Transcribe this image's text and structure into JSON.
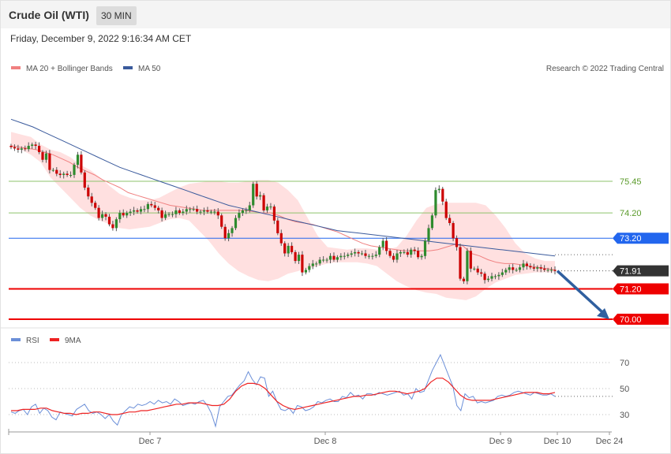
{
  "header": {
    "title": "Crude Oil (WTI)",
    "timeframe": "30 MIN",
    "timestamp": "Friday, December 9, 2022 9:16:34 AM CET"
  },
  "legend": {
    "ma20": "MA 20 + Bollinger Bands",
    "ma50": "MA 50",
    "credit": "Research © 2022 Trading Central",
    "rsi": "RSI",
    "ma9": "9MA"
  },
  "colors": {
    "ma20": "#f08080",
    "ma50": "#3a5a9c",
    "band": "#ffd6d6",
    "up": "#2e8b2e",
    "down": "#cc0000",
    "resistance": "#2266ee",
    "support": "#ee0000",
    "pivot_green": "#8dc36b",
    "current": "#333333",
    "rsi": "#6b8fd8",
    "rsi_ma": "#ee2222"
  },
  "chart_data": [
    {
      "type": "candlestick",
      "title": "Crude Oil (WTI)",
      "timeframe": "30 MIN",
      "x_ticks": [
        "Dec 7",
        "Dec 8",
        "Dec 9",
        "Dec 10",
        "Dec 24"
      ],
      "ylim": [
        69.75,
        76.6
      ],
      "levels": [
        {
          "label": "75.45",
          "value": 75.45,
          "kind": "green"
        },
        {
          "label": "74.20",
          "value": 74.2,
          "kind": "green"
        },
        {
          "label": "73.20",
          "value": 73.2,
          "kind": "resistance"
        },
        {
          "label": "71.91",
          "value": 71.91,
          "kind": "current"
        },
        {
          "label": "71.20",
          "value": 71.2,
          "kind": "support"
        },
        {
          "label": "70.00",
          "value": 70.0,
          "kind": "support"
        }
      ],
      "close": [
        76.8,
        76.75,
        76.7,
        76.75,
        76.72,
        76.85,
        76.9,
        76.85,
        76.6,
        76.3,
        76.55,
        75.9,
        75.9,
        75.75,
        75.7,
        75.75,
        75.7,
        75.7,
        76.1,
        76.5,
        75.8,
        75.2,
        74.85,
        74.6,
        74.4,
        74.0,
        74.15,
        74.05,
        73.75,
        73.6,
        73.95,
        74.2,
        74.1,
        74.2,
        74.25,
        74.3,
        74.25,
        74.35,
        74.35,
        74.55,
        74.5,
        74.4,
        74.3,
        74.0,
        74.15,
        74.15,
        74.15,
        74.3,
        74.2,
        74.25,
        74.35,
        74.35,
        74.35,
        74.25,
        74.25,
        74.3,
        74.25,
        74.25,
        74.25,
        74.1,
        73.65,
        73.2,
        73.4,
        73.6,
        74.0,
        74.2,
        74.3,
        74.3,
        74.5,
        75.35,
        74.85,
        74.9,
        74.3,
        74.45,
        74.45,
        73.9,
        73.4,
        73.0,
        72.6,
        72.9,
        72.65,
        72.3,
        72.55,
        71.85,
        71.95,
        72.1,
        72.2,
        72.2,
        72.35,
        72.35,
        72.35,
        72.5,
        72.35,
        72.45,
        72.5,
        72.5,
        72.55,
        72.6,
        72.65,
        72.6,
        72.6,
        72.5,
        72.5,
        72.5,
        72.55,
        72.85,
        73.1,
        72.7,
        72.5,
        72.35,
        72.6,
        72.65,
        72.65,
        72.55,
        72.75,
        72.7,
        72.45,
        72.5,
        73.1,
        73.6,
        74.1,
        75.1,
        75.15,
        74.65,
        74.0,
        73.8,
        73.2,
        72.85,
        71.6,
        71.5,
        72.7,
        72.0,
        72.0,
        71.85,
        71.8,
        71.55,
        71.6,
        71.7,
        71.7,
        71.75,
        71.85,
        71.95,
        72.05,
        71.95,
        71.95,
        72.05,
        72.2,
        72.1,
        72.05,
        72.0,
        72.05,
        72.0,
        71.95,
        71.95,
        71.95,
        71.91
      ],
      "ma20": [
        76.85,
        76.8,
        76.75,
        76.7,
        76.6,
        76.5,
        76.35,
        76.2,
        76.0,
        75.85,
        75.7,
        75.5,
        75.35,
        75.2,
        75.0,
        74.9,
        74.8,
        74.7,
        74.6,
        74.5,
        74.45,
        74.4,
        74.35,
        74.3,
        74.3,
        74.3,
        74.3,
        74.3,
        74.3,
        74.25,
        74.2,
        74.2,
        74.1,
        73.95,
        73.85,
        73.8,
        73.75,
        73.65,
        73.55,
        73.45,
        73.3,
        73.15,
        73.0,
        72.9,
        72.85,
        72.8,
        72.75,
        72.7,
        72.7,
        72.7,
        72.7,
        72.75,
        72.85,
        72.95,
        72.9,
        72.6,
        72.5,
        72.35,
        72.25,
        72.2,
        72.2,
        72.15,
        72.1,
        72.05,
        72.0,
        71.95
      ],
      "ma50": [
        77.9,
        77.75,
        77.6,
        77.4,
        77.2,
        77.0,
        76.8,
        76.6,
        76.4,
        76.2,
        76.0,
        75.85,
        75.7,
        75.55,
        75.4,
        75.25,
        75.1,
        74.95,
        74.8,
        74.65,
        74.5,
        74.4,
        74.3,
        74.2,
        74.1,
        74.0,
        73.9,
        73.8,
        73.7,
        73.6,
        73.5,
        73.45,
        73.4,
        73.35,
        73.3,
        73.25,
        73.2,
        73.15,
        73.1,
        73.05,
        73.0,
        72.95,
        72.9,
        72.85,
        72.8,
        72.75,
        72.7,
        72.65,
        72.6,
        72.55,
        72.5
      ],
      "band_upper": [
        77.4,
        77.3,
        77.2,
        76.9,
        76.7,
        76.6,
        76.4,
        76.1,
        75.9,
        75.6,
        75.25,
        74.95,
        74.8,
        74.7,
        74.7,
        74.8,
        75.0,
        75.2,
        75.35,
        75.4,
        75.45,
        75.45,
        75.4,
        75.4,
        75.45,
        75.5,
        75.5,
        75.4,
        75.1,
        74.7,
        74.0,
        73.3,
        72.85,
        72.8,
        72.75,
        72.8,
        72.8,
        72.75,
        72.75,
        72.85,
        73.3,
        73.9,
        74.4,
        74.55,
        74.6,
        74.6,
        74.6,
        74.6,
        74.5,
        74.1,
        73.6,
        73.0,
        72.6,
        72.4,
        72.3,
        72.3
      ],
      "band_lower": [
        76.8,
        76.7,
        76.5,
        76.2,
        75.6,
        75.2,
        74.8,
        74.4,
        74.1,
        73.9,
        73.75,
        73.6,
        73.55,
        73.6,
        73.65,
        73.8,
        73.95,
        74.0,
        73.9,
        73.5,
        73.1,
        72.6,
        72.2,
        71.9,
        71.7,
        71.55,
        71.5,
        71.6,
        71.8,
        71.9,
        72.0,
        72.1,
        72.2,
        72.25,
        72.25,
        72.25,
        72.2,
        72.1,
        71.8,
        71.5,
        71.3,
        71.15,
        71.05,
        71.0,
        70.85,
        70.8,
        70.75,
        70.9,
        71.2,
        71.45,
        71.6,
        71.75,
        71.8,
        71.85,
        71.85,
        71.85
      ]
    },
    {
      "type": "line",
      "series": [
        {
          "name": "RSI"
        },
        {
          "name": "9MA"
        }
      ],
      "yticks": [
        30,
        50,
        70
      ],
      "ylim": [
        18,
        82
      ],
      "rsi": [
        32,
        31,
        33,
        34,
        30,
        36,
        38,
        31,
        35,
        33,
        28,
        26,
        32,
        31,
        30,
        29,
        34,
        36,
        38,
        33,
        31,
        32,
        30,
        27,
        30,
        25,
        22,
        30,
        33,
        36,
        35,
        38,
        37,
        38,
        40,
        38,
        41,
        39,
        40,
        38,
        42,
        40,
        37,
        38,
        39,
        38,
        40,
        41,
        37,
        31,
        21,
        36,
        40,
        44,
        45,
        49,
        53,
        56,
        63,
        57,
        53,
        59,
        58,
        44,
        48,
        40,
        34,
        33,
        35,
        31,
        37,
        36,
        33,
        34,
        36,
        40,
        39,
        41,
        42,
        40,
        40,
        44,
        43,
        47,
        44,
        45,
        42,
        46,
        46,
        45,
        47,
        46,
        45,
        46,
        47,
        48,
        45,
        46,
        42,
        50,
        47,
        48,
        56,
        64,
        70,
        76,
        68,
        60,
        52,
        37,
        33,
        46,
        43,
        44,
        39,
        40,
        39,
        40,
        41,
        44,
        45,
        44,
        45,
        47,
        48,
        47,
        46,
        45,
        47,
        46,
        45,
        45,
        46,
        44
      ],
      "rsi_ma": [
        33,
        33,
        34,
        34,
        34,
        35,
        35,
        33,
        32,
        31,
        31,
        30,
        31,
        31,
        32,
        32,
        31,
        30,
        30,
        31,
        32,
        32,
        33,
        33,
        34,
        35,
        36,
        37,
        38,
        38,
        39,
        39,
        39,
        38,
        37,
        37,
        38,
        42,
        48,
        52,
        54,
        54,
        53,
        50,
        45,
        40,
        37,
        35,
        34,
        35,
        36,
        37,
        38,
        39,
        40,
        41,
        42,
        43,
        44,
        44,
        45,
        45,
        46,
        47,
        48,
        48,
        47,
        46,
        47,
        48,
        50,
        55,
        58,
        58,
        55,
        50,
        45,
        42,
        41,
        41,
        41,
        41,
        42,
        43,
        44,
        45,
        46,
        47,
        47,
        47,
        46,
        46,
        47
      ]
    }
  ]
}
